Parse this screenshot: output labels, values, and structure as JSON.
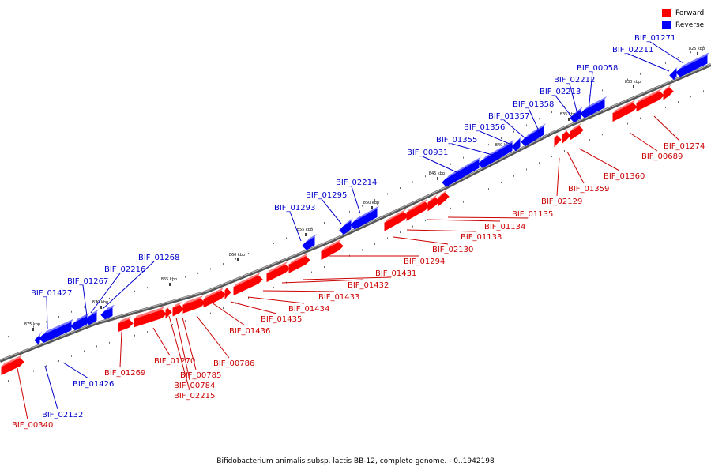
{
  "caption": "Bifidobacterium animalis subsp. lactis BB-12, complete genome. - 0..1942198",
  "legend": {
    "forward": {
      "label": "Forward",
      "color": "#ff0000"
    },
    "reverse": {
      "label": "Reverse",
      "color": "#0000ff"
    }
  },
  "ticks": [
    "825 kbp",
    "830 kbp",
    "835 kbp",
    "840 kbp",
    "845 kbp",
    "850 kbp",
    "855 kbp",
    "860 kbp",
    "865 kbp",
    "870 kbp",
    "875 kbp"
  ],
  "forward_genes": [
    "BIF_01274",
    "BIF_00689",
    "BIF_01360",
    "BIF_01359",
    "BIF_02129",
    "BIF_01135",
    "BIF_01134",
    "BIF_01133",
    "BIF_02130",
    "BIF_01294",
    "BIF_01431",
    "BIF_01432",
    "BIF_01433",
    "BIF_01434",
    "BIF_01435",
    "BIF_01436",
    "BIF_00786",
    "BIF_00785",
    "BIF_00784",
    "BIF_02215",
    "BIF_01270",
    "BIF_01269",
    "BIF_00340"
  ],
  "reverse_genes": [
    "BIF_01271",
    "BIF_02211",
    "BIF_00058",
    "BIF_02212",
    "BIF_02213",
    "BIF_01358",
    "BIF_01357",
    "BIF_01356",
    "BIF_01355",
    "BIF_00931",
    "BIF_02214",
    "BIF_01295",
    "BIF_01293",
    "BIF_01268",
    "BIF_02216",
    "BIF_01267",
    "BIF_01427",
    "BIF_01426",
    "BIF_02132"
  ]
}
